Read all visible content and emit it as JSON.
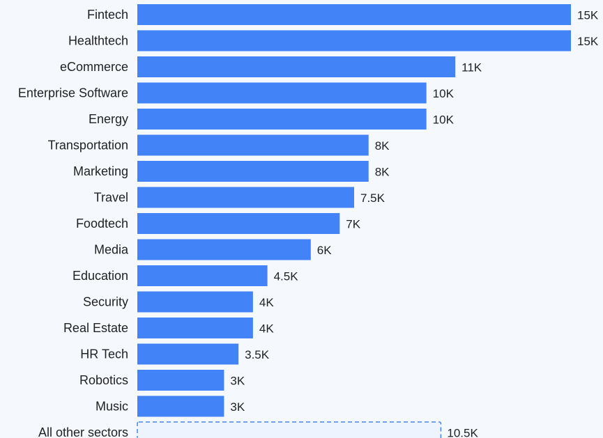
{
  "colors": {
    "background": "#f5f8fd",
    "bar": "#4284f7",
    "other_border": "#4284f7",
    "other_fill": "#eef4fe",
    "text": "#222222"
  },
  "chart_data": {
    "type": "bar",
    "orientation": "horizontal",
    "title": "",
    "xlabel": "",
    "ylabel": "",
    "grid": false,
    "legend": "none",
    "xlim": [
      0,
      15
    ],
    "categories": [
      "Fintech",
      "Healthtech",
      "eCommerce",
      "Enterprise Software",
      "Energy",
      "Transportation",
      "Marketing",
      "Travel",
      "Foodtech",
      "Media",
      "Education",
      "Security",
      "Real Estate",
      "HR Tech",
      "Robotics",
      "Music",
      "All other sectors"
    ],
    "values": [
      15,
      15,
      11,
      10,
      10,
      8,
      8,
      7.5,
      7,
      6,
      4.5,
      4,
      4,
      3.5,
      3,
      3,
      10.5
    ],
    "value_labels": [
      "15K",
      "15K",
      "11K",
      "10K",
      "10K",
      "8K",
      "8K",
      "7.5K",
      "7K",
      "6K",
      "4.5K",
      "4K",
      "4K",
      "3.5K",
      "3K",
      "3K",
      "10.5K"
    ],
    "styles": [
      "solid",
      "solid",
      "solid",
      "solid",
      "solid",
      "solid",
      "solid",
      "solid",
      "solid",
      "solid",
      "solid",
      "solid",
      "solid",
      "solid",
      "solid",
      "solid",
      "dashed"
    ]
  }
}
